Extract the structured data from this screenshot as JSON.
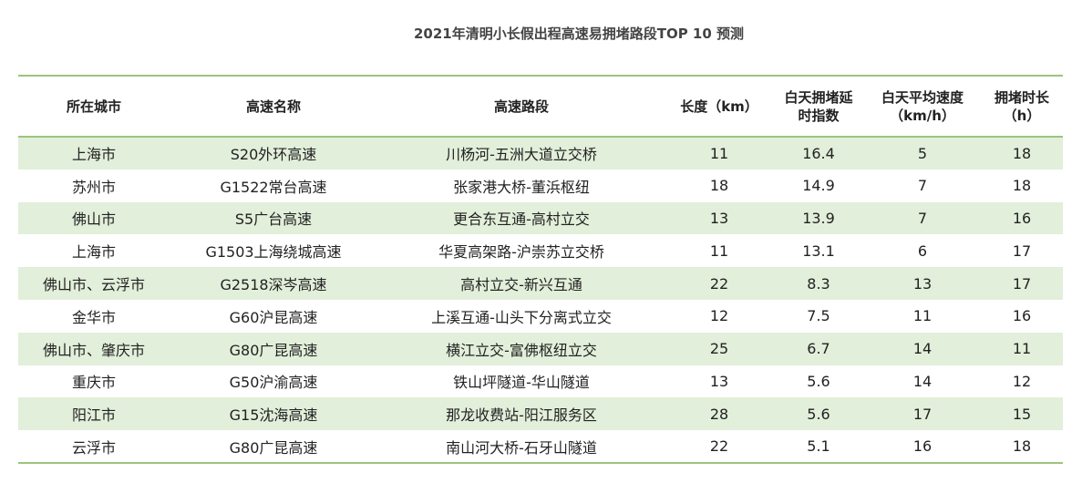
{
  "title": "2021年清明小长假出程高速易拥堵路段TOP 10 预测",
  "columns": [
    "所在城市",
    "高速名称",
    "高速路段",
    "长度（km）",
    "白天拥堵延时指数",
    "白天平均速度（km/h）",
    "拥堵时长（h）"
  ],
  "header_lines": [
    [
      "所在城市"
    ],
    [
      "高速名称"
    ],
    [
      "高速路段"
    ],
    [
      "长度（km）"
    ],
    [
      "白天拥堵延",
      "时指数"
    ],
    [
      "白天平均速度",
      "（km/h）"
    ],
    [
      "拥堵时长",
      "（h）"
    ]
  ],
  "rows": [
    [
      "上海市",
      "S20外环高速",
      "川杨河-五洲大道立交桥",
      "11",
      "16.4",
      "5",
      "18"
    ],
    [
      "苏州市",
      "G1522常台高速",
      "张家港大桥-董浜枢纽",
      "18",
      "14.9",
      "7",
      "18"
    ],
    [
      "佛山市",
      "S5广台高速",
      "更合东互通-高村立交",
      "13",
      "13.9",
      "7",
      "16"
    ],
    [
      "上海市",
      "G1503上海绕城高速",
      "华夏高架路-沪崇苏立交桥",
      "11",
      "13.1",
      "6",
      "17"
    ],
    [
      "佛山市、云浮市",
      "G2518深岑高速",
      "高村立交-新兴互通",
      "22",
      "8.3",
      "13",
      "17"
    ],
    [
      "金华市",
      "G60沪昆高速",
      "上溪互通-山头下分离式立交",
      "12",
      "7.5",
      "11",
      "16"
    ],
    [
      "佛山市、肇庆市",
      "G80广昆高速",
      "横江立交-富佛枢纽立交",
      "25",
      "6.7",
      "14",
      "11"
    ],
    [
      "重庆市",
      "G50沪渝高速",
      "铁山坪隧道-华山隧道",
      "13",
      "5.6",
      "14",
      "12"
    ],
    [
      "阳江市",
      "G15沈海高速",
      "那龙收费站-阳江服务区",
      "28",
      "5.6",
      "17",
      "15"
    ],
    [
      "云浮市",
      "G80广昆高速",
      "南山河大桥-石牙山隧道",
      "22",
      "5.1",
      "16",
      "18"
    ]
  ]
}
